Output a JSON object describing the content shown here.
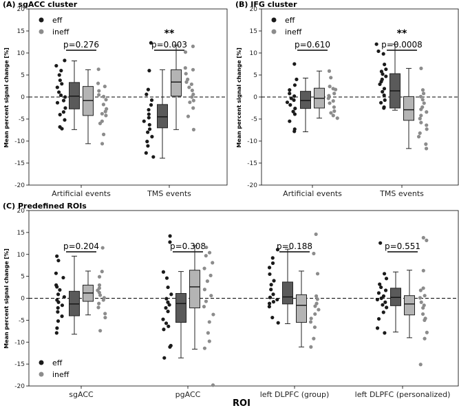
{
  "figure": {
    "xlabel": "ROI",
    "group_names": [
      "eff",
      "ineff"
    ],
    "colors": {
      "eff": "#1a1a1a",
      "ineff": "#8c8c8c",
      "box_eff": "#5a5a5a",
      "box_ineff": "#b4b4b4"
    }
  },
  "chart_data": [
    {
      "type": "box",
      "title": "(A) sgACC cluster",
      "ylabel": "Mean percent signal change [%]",
      "ylim": [
        -20,
        20
      ],
      "yticks": [
        -20,
        -15,
        -10,
        -5,
        0,
        5,
        10,
        15,
        20
      ],
      "categories": [
        "Artificial events",
        "TMS events"
      ],
      "legend": {
        "eff": "eff",
        "ineff": "ineff",
        "position": "top-left"
      },
      "groups": [
        {
          "pvalue": "p=0.276",
          "stars": "",
          "eff": {
            "box": {
              "q1": -2.7,
              "median": 0.2,
              "q3": 3.3,
              "whislo": -7.4,
              "whishi": 8.2
            },
            "points": [
              8.3,
              7.1,
              6.0,
              5.0,
              3.8,
              3.0,
              2.2,
              1.1,
              0.4,
              0.0,
              -0.8,
              -1.3,
              -2.5,
              -3.4,
              -4.0,
              -5.2,
              -6.8,
              -7.2
            ]
          },
          "ineff": {
            "box": {
              "q1": -4.2,
              "median": -0.8,
              "q3": 2.4,
              "whislo": -10.6,
              "whishi": 6.2
            },
            "points": [
              6.3,
              3.1,
              2.4,
              1.4,
              0.5,
              0.1,
              -0.6,
              -1.7,
              -2.7,
              -3.3,
              -3.8,
              -4.2,
              -5.5,
              -6.0,
              -8.5,
              -10.6
            ]
          }
        },
        {
          "pvalue": "p=0.003",
          "stars": "**",
          "eff": {
            "box": {
              "q1": -7.0,
              "median": -4.5,
              "q3": -1.7,
              "whislo": -13.9,
              "whishi": 6.2
            },
            "points": [
              12.3,
              6.0,
              1.7,
              0.6,
              -0.7,
              -1.8,
              -2.9,
              -3.9,
              -4.7,
              -5.5,
              -6.3,
              -7.3,
              -8.0,
              -9.0,
              -10.1,
              -11.1,
              -12.7,
              -13.6
            ]
          },
          "ineff": {
            "box": {
              "q1": 0.2,
              "median": 3.4,
              "q3": 6.2,
              "whislo": -7.4,
              "whishi": 11.8
            },
            "points": [
              11.5,
              10.2,
              6.6,
              6.2,
              5.3,
              4.0,
              3.4,
              2.9,
              2.2,
              1.5,
              0.6,
              0.0,
              -0.8,
              -1.2,
              -2.5,
              -4.4,
              -7.4
            ]
          }
        }
      ]
    },
    {
      "type": "box",
      "title": "(B) IFG cluster",
      "ylabel": "Mean percent signal change [%]",
      "ylim": [
        -20,
        20
      ],
      "yticks": [
        -20,
        -15,
        -10,
        -5,
        0,
        5,
        10,
        15,
        20
      ],
      "categories": [
        "Artificial events",
        "TMS events"
      ],
      "legend": {
        "eff": "eff",
        "ineff": "ineff",
        "position": "top-left"
      },
      "groups": [
        {
          "pvalue": "p=0.610",
          "stars": "",
          "eff": {
            "box": {
              "q1": -2.6,
              "median": -0.8,
              "q3": 1.3,
              "whislo": -7.9,
              "whishi": 4.3
            },
            "points": [
              7.5,
              4.0,
              2.7,
              1.6,
              0.8,
              0.2,
              -0.3,
              -0.7,
              -1.2,
              -1.8,
              -2.6,
              -3.3,
              -3.9,
              -5.5,
              -7.3,
              -7.8
            ]
          },
          "ineff": {
            "box": {
              "q1": -2.5,
              "median": -0.3,
              "q3": 2.0,
              "whislo": -4.8,
              "whishi": 5.9
            },
            "points": [
              5.9,
              4.4,
              2.4,
              1.9,
              1.7,
              0.8,
              0.3,
              -0.3,
              -0.9,
              -1.4,
              -2.3,
              -3.2,
              -3.6,
              -4.2,
              -4.8
            ]
          }
        },
        {
          "pvalue": "p=0.0008",
          "stars": "**",
          "eff": {
            "box": {
              "q1": -2.5,
              "median": 1.4,
              "q3": 5.3,
              "whislo": -3.0,
              "whishi": 12.0
            },
            "points": [
              12.0,
              10.4,
              9.8,
              7.4,
              6.3,
              5.8,
              5.2,
              4.7,
              4.0,
              3.5,
              2.9,
              1.9,
              1.2,
              0.4,
              -0.7,
              -1.3,
              -2.3,
              -2.5
            ]
          },
          "ineff": {
            "box": {
              "q1": -5.3,
              "median": -2.9,
              "q3": 0.1,
              "whislo": -11.7,
              "whishi": 6.5
            },
            "points": [
              6.5,
              1.6,
              0.8,
              0.1,
              -0.6,
              -1.4,
              -2.3,
              -2.8,
              -3.4,
              -4.2,
              -4.9,
              -5.8,
              -6.4,
              -7.3,
              -8.2,
              -9.0,
              -10.7,
              -11.7
            ]
          }
        }
      ]
    },
    {
      "type": "box",
      "title": "(C) Predefined ROIs",
      "ylabel": "Mean percent signal change [%]",
      "xlabel": "ROI",
      "ylim": [
        -20,
        20
      ],
      "yticks": [
        -20,
        -15,
        -10,
        -5,
        0,
        5,
        10,
        15,
        20
      ],
      "categories": [
        "sgACC",
        "pgACC",
        "left DLPFC (group)",
        "left DLPFC (personalized)"
      ],
      "legend": {
        "eff": "eff",
        "ineff": "ineff",
        "position": "bottom-left"
      },
      "groups": [
        {
          "pvalue": "p=0.204",
          "stars": "",
          "eff": {
            "box": {
              "q1": -4.0,
              "median": -1.3,
              "q3": 1.6,
              "whislo": -8.2,
              "whishi": 9.6
            },
            "points": [
              9.6,
              8.6,
              5.7,
              4.7,
              3.0,
              2.6,
              1.9,
              0.9,
              0.3,
              -0.4,
              -0.9,
              -1.6,
              -2.2,
              -3.1,
              -4.1,
              -5.2,
              -6.8,
              -7.9
            ]
          },
          "ineff": {
            "box": {
              "q1": -0.7,
              "median": 1.2,
              "q3": 3.0,
              "whislo": -3.8,
              "whishi": 6.2
            },
            "points": [
              11.5,
              6.1,
              4.9,
              3.0,
              2.3,
              1.8,
              1.3,
              0.7,
              0.1,
              -0.4,
              -1.2,
              -2.1,
              -3.5,
              -4.4,
              -7.4
            ]
          }
        },
        {
          "pvalue": "p=0.308",
          "stars": "",
          "eff": {
            "box": {
              "q1": -5.5,
              "median": -1.2,
              "q3": 1.1,
              "whislo": -13.6,
              "whishi": 6.1
            },
            "points": [
              14.2,
              12.8,
              6.0,
              4.6,
              2.5,
              0.9,
              -0.1,
              -0.9,
              -1.5,
              -2.2,
              -3.0,
              -4.8,
              -5.7,
              -6.4,
              -7.1,
              -10.8,
              -11.1,
              -13.6
            ]
          },
          "ineff": {
            "box": {
              "q1": -2.2,
              "median": 2.6,
              "q3": 6.4,
              "whislo": -11.6,
              "whishi": 12.0
            },
            "points": [
              11.6,
              10.4,
              9.7,
              8.1,
              6.8,
              5.2,
              3.9,
              2.0,
              0.6,
              -0.7,
              -1.9,
              -3.7,
              -5.4,
              -7.9,
              -9.8,
              -11.4,
              -19.8
            ]
          }
        },
        {
          "pvalue": "p=0.188",
          "stars": "",
          "eff": {
            "box": {
              "q1": -1.3,
              "median": 0.3,
              "q3": 3.7,
              "whislo": -5.8,
              "whishi": 11.2
            },
            "points": [
              11.1,
              9.2,
              8.0,
              7.0,
              5.5,
              4.0,
              3.1,
              2.0,
              0.9,
              0.2,
              -0.3,
              -0.8,
              -1.2,
              -1.9,
              -4.4,
              -5.6
            ]
          },
          "ineff": {
            "box": {
              "q1": -5.5,
              "median": -1.6,
              "q3": 0.8,
              "whislo": -11.1,
              "whishi": 6.2
            },
            "points": [
              14.6,
              10.2,
              5.6,
              0.5,
              -0.2,
              -1.2,
              -1.8,
              -2.6,
              -3.6,
              -4.6,
              -5.4,
              -6.6,
              -9.2,
              -11.1
            ]
          }
        },
        {
          "pvalue": "p=0.551",
          "stars": "",
          "eff": {
            "box": {
              "q1": -1.7,
              "median": 0.2,
              "q3": 2.3,
              "whislo": -7.7,
              "whishi": 6.0
            },
            "points": [
              12.6,
              5.6,
              4.5,
              3.2,
              2.5,
              1.8,
              1.2,
              0.5,
              0.0,
              -0.3,
              -0.9,
              -1.5,
              -2.1,
              -3.2,
              -4.7,
              -6.8,
              -7.9
            ]
          },
          "ineff": {
            "box": {
              "q1": -3.8,
              "median": -1.3,
              "q3": 0.6,
              "whislo": -9.0,
              "whishi": 6.4
            },
            "points": [
              13.8,
              13.2,
              6.3,
              2.3,
              1.8,
              0.6,
              0.1,
              -0.9,
              -1.6,
              -2.2,
              -3.6,
              -4.6,
              -5.0,
              -7.8,
              -9.2,
              -15.1
            ]
          }
        }
      ]
    }
  ]
}
